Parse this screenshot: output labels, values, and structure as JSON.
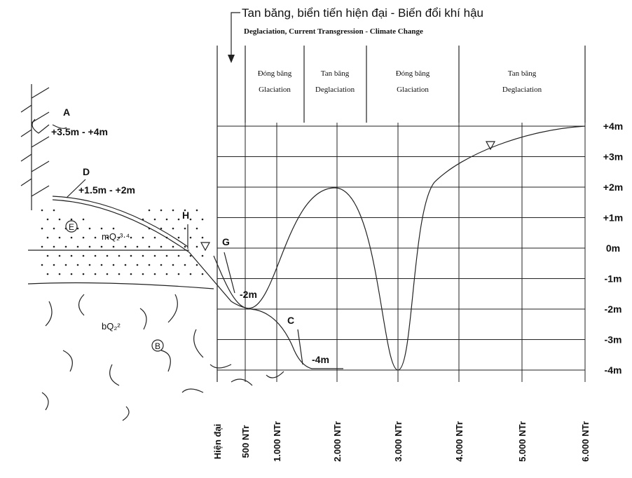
{
  "title": {
    "vi": "Tan băng, biển tiến hiện đại - Biến đổi khí hậu",
    "en": "Deglaciation, Current Transgression - Climate Change"
  },
  "phases": [
    {
      "vi": "Đóng băng",
      "en": "Glaciation"
    },
    {
      "vi": "Tan băng",
      "en": "Deglaciation"
    },
    {
      "vi": "Đóng băng",
      "en": "Glaciation"
    },
    {
      "vi": "Tan băng",
      "en": "Deglaciation"
    }
  ],
  "levels": [
    "+4m",
    "+3m",
    "+2m",
    "+1m",
    "0m",
    "-1m",
    "-2m",
    "-3m",
    "-4m"
  ],
  "times": [
    "Hiện đại",
    "500 NTr",
    "1.000 NTr",
    "2.000 NTr",
    "3.000 NTr",
    "4.000 NTr",
    "5.000 NTr",
    "6.000 NTr"
  ],
  "markers": [
    {
      "label": "A",
      "note": "+3.5m - +4m"
    },
    {
      "label": "D",
      "note": "+1.5m - +2m"
    },
    {
      "label": "H"
    },
    {
      "label": "G",
      "note": "-2m"
    },
    {
      "label": "C",
      "note": "-4m"
    }
  ],
  "formations": [
    {
      "symbol": "E",
      "code": "mQ₂³·⁴"
    },
    {
      "symbol": "B",
      "code": "bQ₂²"
    }
  ]
}
